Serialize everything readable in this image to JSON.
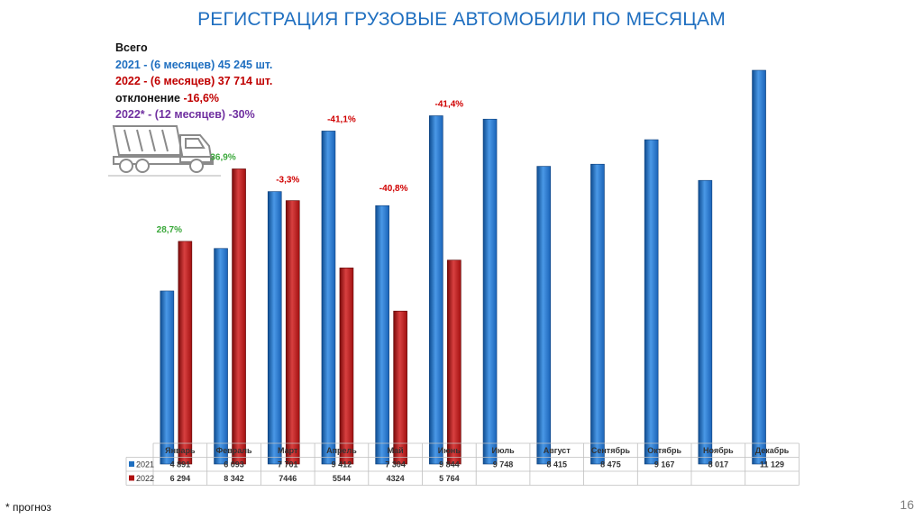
{
  "title": "РЕГИСТРАЦИЯ ГРУЗОВЫЕ АВТОМОБИЛИ ПО МЕСЯЦАМ",
  "totals": {
    "heading": "Всего",
    "line_2021": "2021 - (6 месяцев)  45 245 шт.",
    "line_2022": "2022 - (6 месяцев)  37 714 шт.",
    "deviation_label": "отклонение ",
    "deviation_value": "-16,6%",
    "forecast_line": "2022* - (12 месяцев) -30%"
  },
  "footnote": "* прогноз",
  "page_number": "16",
  "colors": {
    "series_2021": "#1f6fc0",
    "series_2022": "#b01010",
    "positive": "#3aa83a",
    "negative": "#d00000"
  },
  "chart_data": {
    "type": "bar",
    "categories": [
      "Январь",
      "Февраль",
      "Март",
      "Апрель",
      "Май",
      "Июнь",
      "Июль",
      "Август",
      "Сентябрь",
      "Октябрь",
      "Ноябрь",
      "Декабрь"
    ],
    "series": [
      {
        "name": "2021",
        "values": [
          4891,
          6093,
          7701,
          9412,
          7304,
          9844,
          9748,
          8415,
          8475,
          9167,
          8017,
          11129
        ],
        "labels": [
          "4 891",
          "6 093",
          "7 701",
          "9 412",
          "7 304",
          "9 844",
          "9 748",
          "8 415",
          "8 475",
          "9 167",
          "8 017",
          "11 129"
        ]
      },
      {
        "name": "2022",
        "values": [
          6294,
          8342,
          7446,
          5544,
          4324,
          5764,
          null,
          null,
          null,
          null,
          null,
          null
        ],
        "labels": [
          "6 294",
          "8 342",
          "7446",
          "5544",
          "4324",
          "5 764",
          "",
          "",
          "",
          "",
          "",
          ""
        ]
      }
    ],
    "annotations": [
      {
        "category": "Январь",
        "text": "28,7%",
        "sign": "positive"
      },
      {
        "category": "Февраль",
        "text": "36,9%",
        "sign": "positive"
      },
      {
        "category": "Март",
        "text": "-3,3%",
        "sign": "negative"
      },
      {
        "category": "Апрель",
        "text": "-41,1%",
        "sign": "negative"
      },
      {
        "category": "Май",
        "text": "-40,8%",
        "sign": "negative"
      },
      {
        "category": "Июнь",
        "text": "-41,4%",
        "sign": "negative"
      }
    ],
    "ylim": [
      0,
      11600
    ],
    "grid": false,
    "legend": "data-table"
  }
}
